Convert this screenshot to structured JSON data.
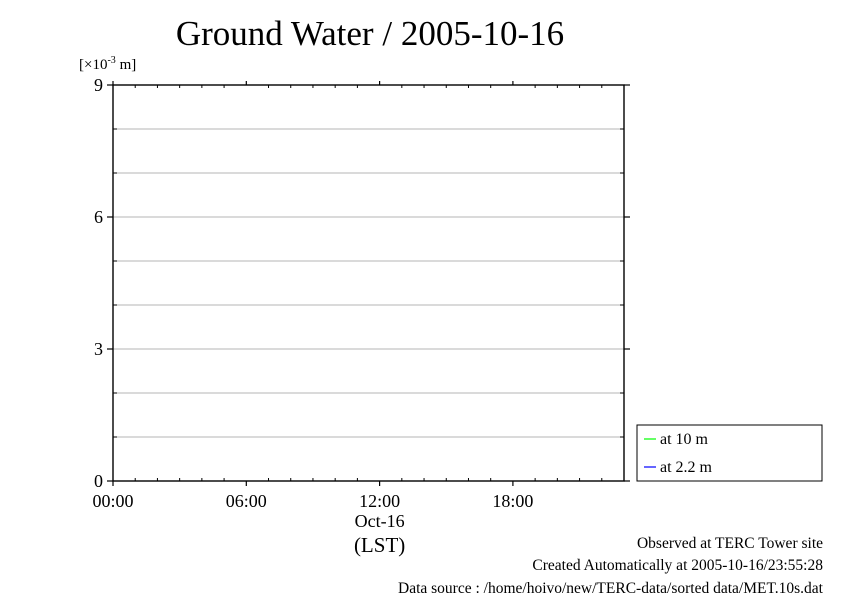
{
  "chart_data": {
    "type": "line",
    "title": "Ground Water / 2005-10-16",
    "ylabel_base": "[×10",
    "ylabel_exp": "-3",
    "ylabel_rest": " m]",
    "ylim": [
      0,
      9
    ],
    "yticks": [
      0,
      3,
      6,
      9
    ],
    "yminor": [
      1,
      2,
      4,
      5,
      7,
      8
    ],
    "xlim_hours": [
      0,
      23
    ],
    "xticks": [
      {
        "hour": 0,
        "label": "00:00"
      },
      {
        "hour": 6,
        "label": "06:00"
      },
      {
        "hour": 12,
        "label": "12:00"
      },
      {
        "hour": 18,
        "label": "18:00"
      }
    ],
    "date_label": "Oct-16",
    "timezone_label": "(LST)",
    "grid": true,
    "legend_position": "bottom-right, outside plot",
    "series": [
      {
        "name": "at 10 m",
        "color": "#00ff00",
        "values": []
      },
      {
        "name": "at 2.2 m",
        "color": "#0000ff",
        "values": []
      }
    ]
  },
  "footer": {
    "observed": "Observed at TERC Tower site",
    "created": "Created Automatically at 2005-10-16/23:55:28",
    "source": "Data source : /home/hoivo/new/TERC-data/sorted  data/MET.10s.dat"
  }
}
